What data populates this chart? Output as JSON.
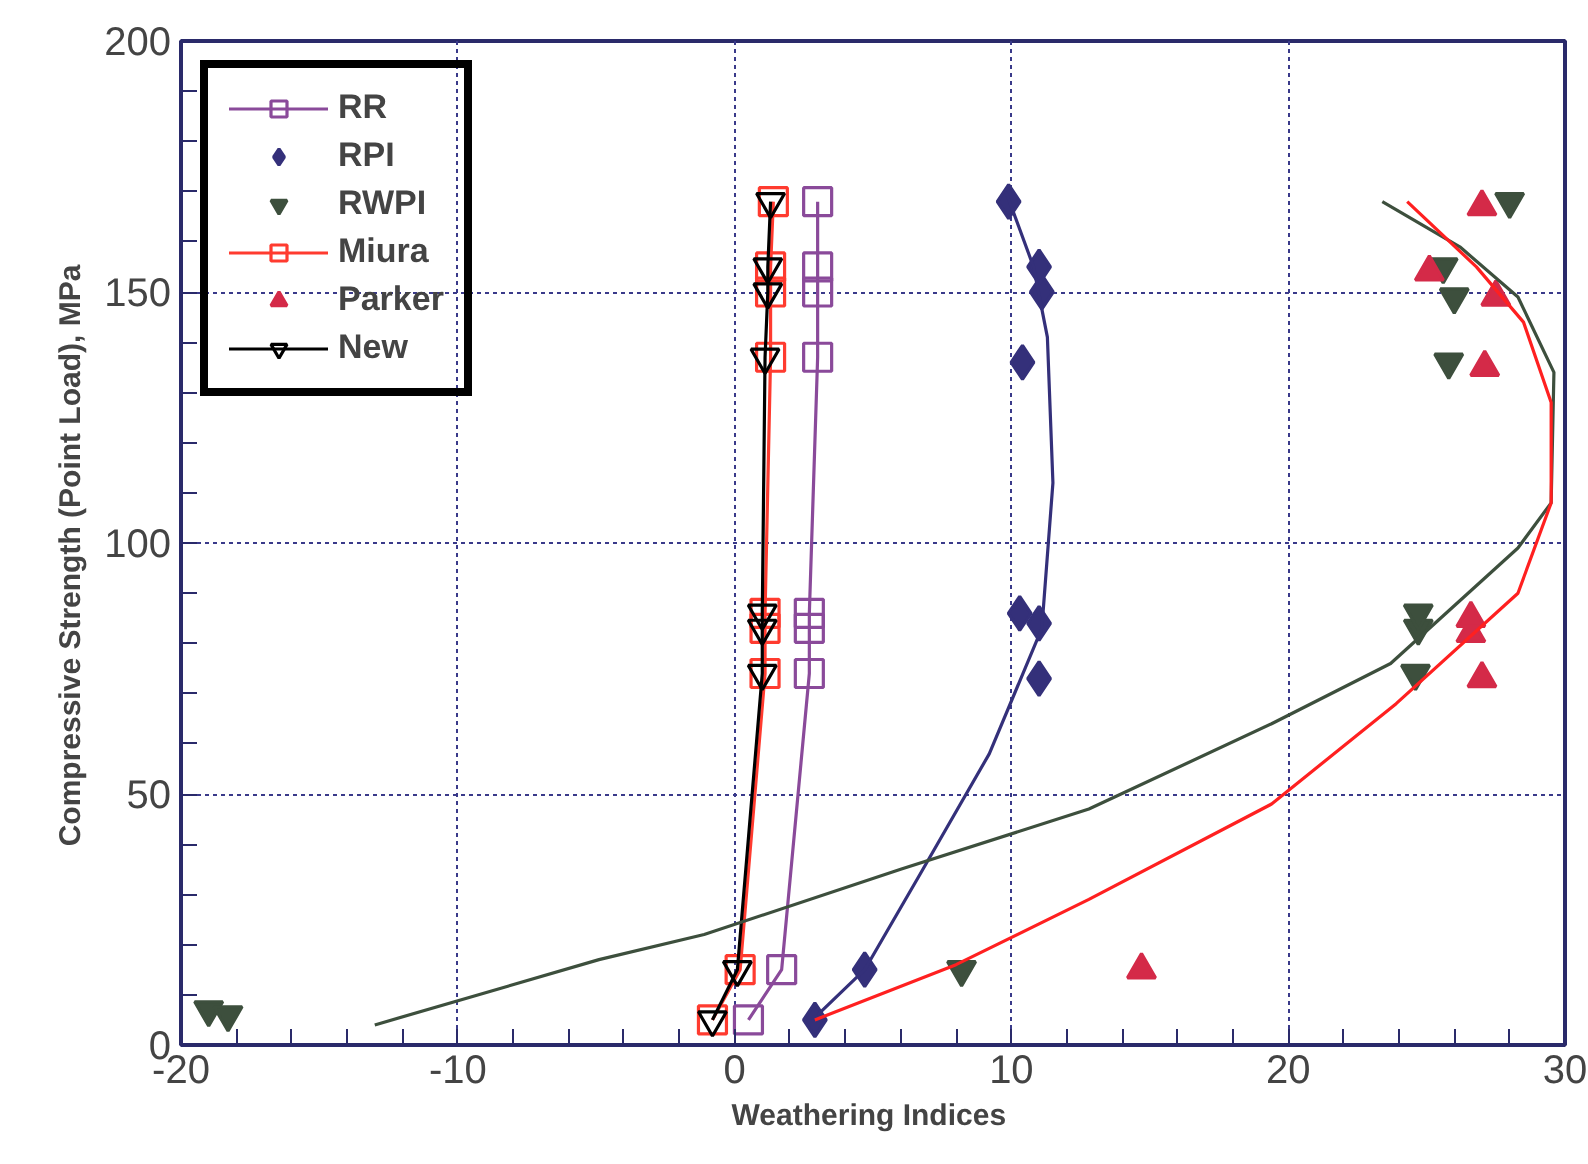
{
  "chart_data": {
    "type": "scatter",
    "xlabel": "Weathering  Indices",
    "ylabel": "Compressive  Strength  (Point Load),  MPa",
    "xlim": [
      -20,
      30
    ],
    "ylim": [
      0,
      200
    ],
    "xticks": [
      -20,
      {
        "value": -18,
        "label": null
      },
      {
        "value": -16,
        "label": null
      },
      {
        "value": -14,
        "label": null
      },
      {
        "value": -12,
        "label": null
      },
      -10,
      {
        "value": -8,
        "label": null
      },
      {
        "value": -6,
        "label": null
      },
      {
        "value": -4,
        "label": null
      },
      {
        "value": -2,
        "label": null
      },
      0,
      {
        "value": 2,
        "label": null
      },
      {
        "value": 4,
        "label": null
      },
      {
        "value": 6,
        "label": null
      },
      {
        "value": 8,
        "label": null
      },
      10,
      {
        "value": 12,
        "label": null
      },
      {
        "value": 14,
        "label": null
      },
      {
        "value": 16,
        "label": null
      },
      {
        "value": 18,
        "label": null
      },
      20,
      {
        "value": 22,
        "label": null
      },
      {
        "value": 24,
        "label": null
      },
      {
        "value": 26,
        "label": null
      },
      {
        "value": 28,
        "label": null
      },
      30
    ],
    "yticks": [
      0,
      {
        "value": 10,
        "label": null
      },
      {
        "value": 20,
        "label": null
      },
      {
        "value": 30,
        "label": null
      },
      {
        "value": 40,
        "label": null
      },
      50,
      {
        "value": 60,
        "label": null
      },
      {
        "value": 70,
        "label": null
      },
      {
        "value": 80,
        "label": null
      },
      {
        "value": 90,
        "label": null
      },
      100,
      {
        "value": 110,
        "label": null
      },
      {
        "value": 120,
        "label": null
      },
      {
        "value": 130,
        "label": null
      },
      {
        "value": 140,
        "label": null
      },
      150,
      {
        "value": 160,
        "label": null
      },
      {
        "value": 170,
        "label": null
      },
      {
        "value": 180,
        "label": null
      },
      {
        "value": 190,
        "label": null
      },
      200
    ],
    "grid": true,
    "legend": "top left",
    "series": [
      {
        "name": "RR",
        "type": "line",
        "marker": "square",
        "color": "#8a4a9a",
        "x": [
          0.5,
          1.7,
          2.7,
          2.7,
          2.7,
          3.0,
          3.0,
          3.0,
          3.0
        ],
        "values": [
          5,
          15,
          74,
          83,
          86,
          137,
          150,
          155,
          168
        ]
      },
      {
        "name": "RPI",
        "marker": "diamond",
        "color": "#34307a",
        "x": [
          2.9,
          4.7,
          11.0,
          11.0,
          10.3,
          10.4,
          11.1,
          11.0,
          9.9
        ],
        "values": [
          5,
          15,
          73,
          84,
          86,
          136,
          150,
          155,
          168
        ]
      },
      {
        "name": "RWPI",
        "marker": "triangle-down",
        "color": "#3d4f3d",
        "x": [
          -19.0,
          -18.3,
          8.2,
          24.6,
          24.7,
          24.7,
          25.8,
          26.0,
          25.6,
          28.0
        ],
        "values": [
          7,
          6,
          15,
          74,
          83,
          86,
          136,
          149,
          155,
          168
        ]
      },
      {
        "name": "Miura",
        "type": "line",
        "marker": "square",
        "color": "#ff3b2f",
        "x": [
          -0.8,
          0.2,
          1.1,
          1.1,
          1.1,
          1.3,
          1.3,
          1.3,
          1.4
        ],
        "values": [
          5,
          15,
          74,
          83,
          86,
          137,
          150,
          155,
          168
        ]
      },
      {
        "name": "Parker",
        "marker": "triangle",
        "color": "#d42a48",
        "x": [
          14.7,
          27.0,
          26.6,
          26.6,
          27.1,
          27.5,
          25.1,
          27.0
        ],
        "values": [
          15,
          73,
          82,
          85,
          135,
          149,
          154,
          167
        ]
      },
      {
        "name": "New",
        "type": "line",
        "marker": "triangle-down-open",
        "color": "#000000",
        "x": [
          -0.8,
          0.1,
          1.0,
          1.0,
          1.0,
          1.1,
          1.2,
          1.2,
          1.3
        ],
        "values": [
          5,
          15,
          74,
          83,
          86,
          137,
          150,
          155,
          168
        ]
      },
      {
        "type": "line",
        "marker": "none",
        "color": "#34307a",
        "x": [
          3.0,
          4.7,
          6.7,
          9.2,
          11.1,
          11.5,
          11.3,
          10.8,
          9.8
        ],
        "values": [
          6,
          15,
          34,
          58,
          83,
          112,
          141,
          155,
          170
        ]
      },
      {
        "type": "line",
        "marker": "none",
        "color": "#3d4f3d",
        "x": [
          -13.0,
          -4.9,
          -1.1,
          6.0,
          12.8,
          19.4,
          23.7,
          28.3,
          29.5,
          29.6,
          28.3,
          26.2,
          23.4
        ],
        "values": [
          4,
          17,
          22,
          35,
          47,
          64,
          76,
          99,
          108,
          134,
          149,
          159,
          168
        ]
      },
      {
        "type": "line",
        "marker": "none",
        "color": "#ff2020",
        "x": [
          2.9,
          8.0,
          12.8,
          19.4,
          23.9,
          28.3,
          29.5,
          29.5,
          28.5,
          26.8,
          24.3
        ],
        "values": [
          5,
          16,
          29,
          48,
          68,
          90,
          108,
          128,
          144,
          155,
          168
        ]
      }
    ]
  }
}
